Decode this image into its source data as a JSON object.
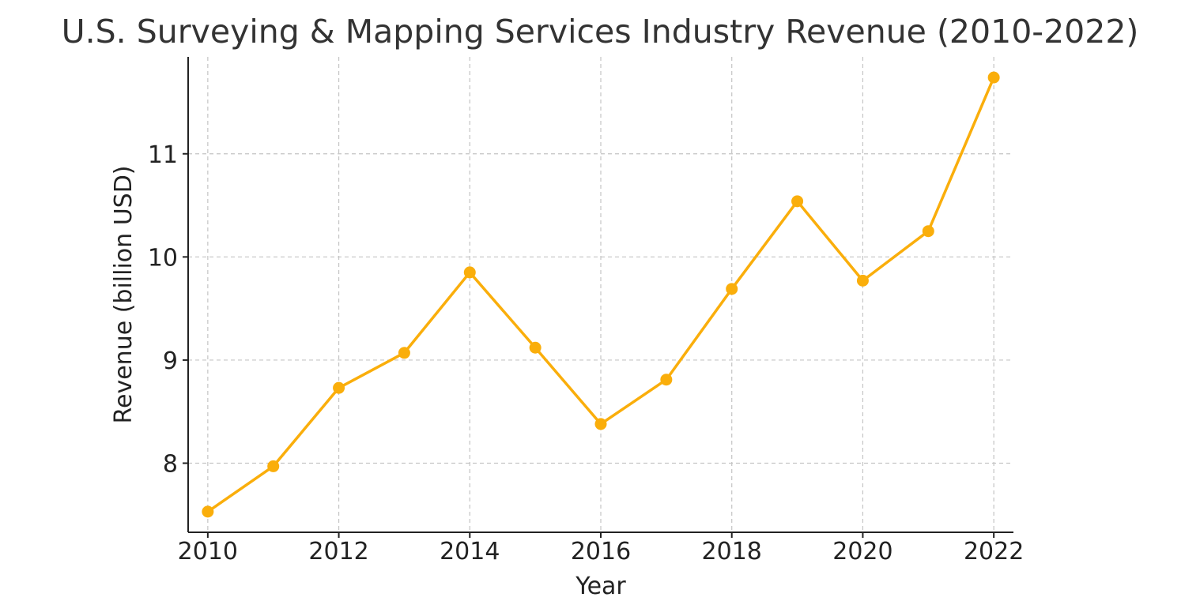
{
  "chart_data": {
    "type": "line",
    "title": "U.S. Surveying & Mapping Services Industry Revenue (2010-2022)",
    "xlabel": "Year",
    "ylabel": "Revenue (billion USD)",
    "x": [
      2010,
      2011,
      2012,
      2013,
      2014,
      2015,
      2016,
      2017,
      2018,
      2019,
      2020,
      2021,
      2022
    ],
    "series": [
      {
        "values": [
          7.53,
          7.97,
          8.73,
          9.07,
          9.85,
          9.12,
          8.38,
          8.81,
          9.69,
          10.54,
          9.77,
          10.25,
          11.74
        ]
      }
    ],
    "xticks": [
      "2010",
      "2012",
      "2014",
      "2016",
      "2018",
      "2020",
      "2022"
    ],
    "yticks": [
      "8",
      "9",
      "10",
      "11"
    ],
    "xlim": [
      2009.7,
      2022.3
    ],
    "ylim": [
      7.33,
      11.94
    ],
    "grid": true,
    "color": "#FAAE0B"
  }
}
